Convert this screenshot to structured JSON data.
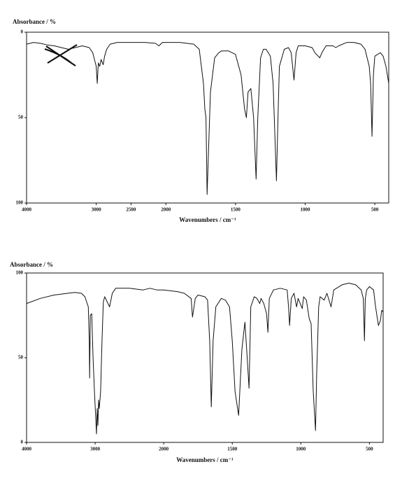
{
  "chart_data": [
    {
      "type": "line",
      "ylabel": "Absorbance / %",
      "xlabel": "Wavenumbers / cm⁻¹",
      "xlim": [
        4000,
        400
      ],
      "xscale_break": 2000,
      "xticks": [
        4000,
        3000,
        2500,
        2000,
        1500,
        1000,
        500
      ],
      "ylim": [
        100,
        0
      ],
      "yticks": [
        0,
        50,
        100
      ],
      "color": "#111111",
      "x": [
        4000,
        3900,
        3800,
        3700,
        3600,
        3500,
        3400,
        3300,
        3200,
        3100,
        3050,
        3000,
        2985,
        2970,
        2950,
        2930,
        2900,
        2880,
        2850,
        2800,
        2700,
        2500,
        2300,
        2150,
        2100,
        2050,
        2000,
        1900,
        1800,
        1760,
        1730,
        1720,
        1712,
        1704,
        1690,
        1680,
        1650,
        1620,
        1600,
        1550,
        1500,
        1460,
        1435,
        1422,
        1410,
        1390,
        1370,
        1352,
        1340,
        1320,
        1300,
        1280,
        1250,
        1230,
        1206,
        1195,
        1185,
        1150,
        1120,
        1100,
        1080,
        1065,
        1050,
        1000,
        950,
        930,
        895,
        880,
        850,
        800,
        780,
        760,
        700,
        650,
        600,
        570,
        540,
        530,
        520,
        510,
        500,
        480,
        460,
        440,
        420,
        400
      ],
      "values": [
        7,
        6,
        6.5,
        7.5,
        8,
        9,
        10,
        9,
        8,
        9,
        12,
        20,
        30,
        18,
        20,
        16,
        19,
        14,
        10,
        7,
        6,
        6,
        6,
        6.5,
        8,
        6,
        6,
        6,
        7,
        10,
        30,
        45,
        50,
        95,
        60,
        35,
        15,
        12,
        11,
        11,
        13,
        25,
        45,
        50,
        35,
        33,
        50,
        86,
        50,
        15,
        10,
        10,
        14,
        30,
        87,
        50,
        20,
        10,
        9,
        12,
        28,
        12,
        8,
        8,
        9,
        12,
        15,
        12,
        8,
        8,
        9,
        8,
        6,
        6,
        7,
        10,
        20,
        30,
        61,
        25,
        14,
        13,
        12,
        14,
        20,
        30
      ]
    },
    {
      "type": "line",
      "ylabel": "Absorbance / %",
      "xlabel": "Wavenumbers / cm⁻¹",
      "xlim": [
        4000,
        400
      ],
      "xscale_break": 2000,
      "xticks": [
        4000,
        3000,
        2000,
        1500,
        1000,
        500
      ],
      "ylim": [
        0,
        100
      ],
      "yticks": [
        0,
        50,
        100
      ],
      "color": "#111111",
      "x": [
        4000,
        3800,
        3600,
        3400,
        3300,
        3200,
        3150,
        3100,
        3085,
        3080,
        3070,
        3050,
        3030,
        3010,
        2980,
        2970,
        2960,
        2950,
        2940,
        2920,
        2900,
        2880,
        2860,
        2790,
        2750,
        2700,
        2500,
        2300,
        2200,
        2100,
        2000,
        1900,
        1850,
        1800,
        1790,
        1770,
        1750,
        1700,
        1680,
        1665,
        1653,
        1640,
        1620,
        1580,
        1550,
        1520,
        1500,
        1480,
        1454,
        1430,
        1408,
        1395,
        1378,
        1365,
        1340,
        1320,
        1300,
        1290,
        1270,
        1250,
        1240,
        1230,
        1200,
        1150,
        1100,
        1090,
        1082,
        1070,
        1050,
        1031,
        1020,
        990,
        980,
        960,
        939,
        925,
        910,
        893,
        885,
        870,
        860,
        830,
        810,
        780,
        760,
        700,
        650,
        600,
        560,
        545,
        536,
        530,
        520,
        500,
        470,
        455,
        434,
        420,
        410,
        400
      ],
      "values": [
        82,
        85,
        87,
        88,
        88.5,
        88,
        86,
        80,
        60,
        38,
        75,
        76,
        50,
        30,
        5,
        20,
        10,
        25,
        20,
        30,
        60,
        83,
        86,
        80,
        88,
        91,
        91,
        90,
        91,
        90,
        90,
        89,
        88,
        85,
        74,
        85,
        87,
        86,
        84,
        60,
        21,
        60,
        80,
        85,
        84,
        80,
        60,
        30,
        16,
        55,
        71,
        55,
        32,
        80,
        86,
        85,
        82,
        85,
        82,
        76,
        65,
        85,
        90,
        91,
        90,
        80,
        69,
        85,
        88,
        80,
        85,
        79,
        86,
        84,
        73,
        70,
        30,
        7,
        40,
        80,
        86,
        84,
        88,
        80,
        90,
        93,
        94,
        93,
        90,
        85,
        60,
        85,
        90,
        92,
        90,
        80,
        69,
        72,
        78,
        77
      ]
    }
  ]
}
